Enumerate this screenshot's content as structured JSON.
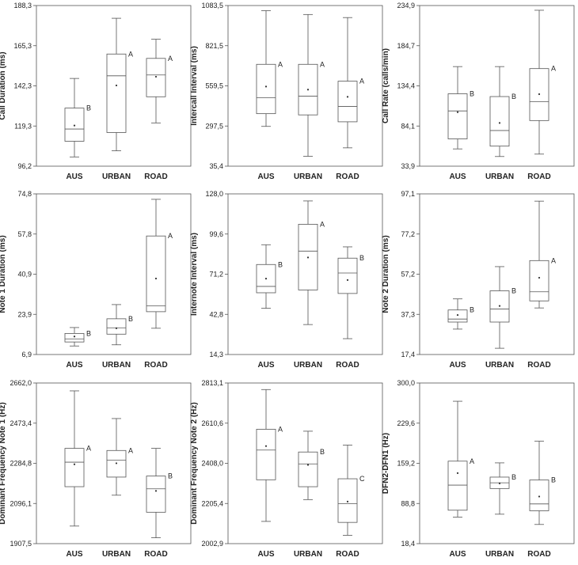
{
  "chart_data": [
    {
      "type": "boxplot",
      "ylabel": "Call Duration (ms)",
      "ylim": [
        96.2,
        188.3
      ],
      "yticks": [
        "96,2",
        "119,3",
        "142,3",
        "165,3",
        "188,3"
      ],
      "categories": [
        "AUS",
        "URBAN",
        "ROAD"
      ],
      "boxes": [
        {
          "min": 101.5,
          "q1": 110.5,
          "median": 117.5,
          "q3": 129.5,
          "max": 146.5,
          "mean": 119.5,
          "letter": "B"
        },
        {
          "min": 105.0,
          "q1": 115.5,
          "median": 148.0,
          "q3": 160.5,
          "max": 181.0,
          "mean": 142.5,
          "letter": "A"
        },
        {
          "min": 121.0,
          "q1": 136.0,
          "median": 148.5,
          "q3": 158.0,
          "max": 169.0,
          "mean": 147.5,
          "letter": "A"
        }
      ]
    },
    {
      "type": "boxplot",
      "ylabel": "Intercall Interval (ms)",
      "ylim": [
        35.4,
        1083.5
      ],
      "yticks": [
        "35,4",
        "297,5",
        "559,5",
        "821,5",
        "1083,5"
      ],
      "categories": [
        "AUS",
        "URBAN",
        "ROAD"
      ],
      "boxes": [
        {
          "min": 295,
          "q1": 378,
          "median": 482,
          "q3": 700,
          "max": 1050,
          "mean": 555,
          "letter": "A"
        },
        {
          "min": 100,
          "q1": 370,
          "median": 492,
          "q3": 700,
          "max": 1025,
          "mean": 535,
          "letter": "A"
        },
        {
          "min": 155,
          "q1": 325,
          "median": 425,
          "q3": 590,
          "max": 1005,
          "mean": 488,
          "letter": "A"
        }
      ]
    },
    {
      "type": "boxplot",
      "ylabel": "Call Rate (calls/min)",
      "ylim": [
        33.9,
        234.9
      ],
      "yticks": [
        "33,9",
        "84,1",
        "134,4",
        "184,7",
        "234,9"
      ],
      "categories": [
        "AUS",
        "URBAN",
        "ROAD"
      ],
      "boxes": [
        {
          "min": 55.5,
          "q1": 68.0,
          "median": 103.0,
          "q3": 124.5,
          "max": 158.5,
          "mean": 101.5,
          "letter": "B"
        },
        {
          "min": 46.0,
          "q1": 59.0,
          "median": 78.5,
          "q3": 121.0,
          "max": 158.5,
          "mean": 88.0,
          "letter": "B"
        },
        {
          "min": 49.0,
          "q1": 91.0,
          "median": 114.5,
          "q3": 156.0,
          "max": 229.0,
          "mean": 124.0,
          "letter": "A"
        }
      ]
    },
    {
      "type": "boxplot",
      "ylabel": "Note 1 Duration (ms)",
      "ylim": [
        6.9,
        74.8
      ],
      "yticks": [
        "6,9",
        "23,9",
        "40,9",
        "57,8",
        "74,8"
      ],
      "categories": [
        "AUS",
        "URBAN",
        "ROAD"
      ],
      "boxes": [
        {
          "min": 10.5,
          "q1": 12.2,
          "median": 13.5,
          "q3": 15.8,
          "max": 18.3,
          "mean": 14.5,
          "letter": "B"
        },
        {
          "min": 11.0,
          "q1": 15.5,
          "median": 18.2,
          "q3": 22.0,
          "max": 28.0,
          "mean": 18.0,
          "letter": "B"
        },
        {
          "min": 18.0,
          "q1": 25.0,
          "median": 27.5,
          "q3": 57.0,
          "max": 72.5,
          "mean": 39.0,
          "letter": "A"
        }
      ]
    },
    {
      "type": "boxplot",
      "ylabel": "Internote Interval (ms)",
      "ylim": [
        14.3,
        128.0
      ],
      "yticks": [
        "14,3",
        "42,8",
        "71,2",
        "99,6",
        "128,0"
      ],
      "categories": [
        "AUS",
        "URBAN",
        "ROAD"
      ],
      "boxes": [
        {
          "min": 47.0,
          "q1": 58.0,
          "median": 62.5,
          "q3": 78.0,
          "max": 92.0,
          "mean": 68.0,
          "letter": "B"
        },
        {
          "min": 35.5,
          "q1": 60.0,
          "median": 87.5,
          "q3": 106.5,
          "max": 123.0,
          "mean": 83.0,
          "letter": "A"
        },
        {
          "min": 25.5,
          "q1": 57.5,
          "median": 72.0,
          "q3": 82.5,
          "max": 90.5,
          "mean": 67.0,
          "letter": "B"
        }
      ]
    },
    {
      "type": "boxplot",
      "ylabel": "Note 2 Duration (ms)",
      "ylim": [
        17.4,
        97.1
      ],
      "yticks": [
        "17,4",
        "37,3",
        "57,2",
        "77,2",
        "97,1"
      ],
      "categories": [
        "AUS",
        "URBAN",
        "ROAD"
      ],
      "boxes": [
        {
          "min": 30.0,
          "q1": 33.5,
          "median": 35.0,
          "q3": 39.5,
          "max": 45.0,
          "mean": 37.0,
          "letter": "B"
        },
        {
          "min": 20.5,
          "q1": 33.5,
          "median": 40.0,
          "q3": 49.0,
          "max": 61.0,
          "mean": 41.5,
          "letter": "B"
        },
        {
          "min": 40.5,
          "q1": 44.0,
          "median": 48.5,
          "q3": 64.0,
          "max": 93.5,
          "mean": 55.5,
          "letter": "A"
        }
      ]
    },
    {
      "type": "boxplot",
      "ylabel": "Dominant Frequency Note 1 (Hz)",
      "ylim": [
        1907.5,
        2662.0
      ],
      "yticks": [
        "1907,5",
        "2096,1",
        "2284,8",
        "2473,4",
        "2662,0"
      ],
      "categories": [
        "AUS",
        "URBAN",
        "ROAD"
      ],
      "boxes": [
        {
          "min": 1990,
          "q1": 2175,
          "median": 2290,
          "q3": 2355,
          "max": 2625,
          "mean": 2280,
          "letter": "A"
        },
        {
          "min": 2135,
          "q1": 2220,
          "median": 2300,
          "q3": 2345,
          "max": 2495,
          "mean": 2285,
          "letter": "A"
        },
        {
          "min": 1935,
          "q1": 2055,
          "median": 2165,
          "q3": 2225,
          "max": 2355,
          "mean": 2155,
          "letter": "B"
        }
      ]
    },
    {
      "type": "boxplot",
      "ylabel": "Dominant Frequency Note 2 (Hz)",
      "ylim": [
        2002.9,
        2813.1
      ],
      "yticks": [
        "2002,9",
        "2205,4",
        "2408,0",
        "2610,6",
        "2813,1"
      ],
      "categories": [
        "AUS",
        "URBAN",
        "ROAD"
      ],
      "boxes": [
        {
          "min": 2115,
          "q1": 2325,
          "median": 2475,
          "q3": 2580,
          "max": 2780,
          "mean": 2495,
          "letter": "A"
        },
        {
          "min": 2225,
          "q1": 2290,
          "median": 2405,
          "q3": 2465,
          "max": 2570,
          "mean": 2400,
          "letter": "B"
        },
        {
          "min": 2045,
          "q1": 2110,
          "median": 2205,
          "q3": 2330,
          "max": 2500,
          "mean": 2215,
          "letter": "C"
        }
      ]
    },
    {
      "type": "boxplot",
      "ylabel": "DFN2-DFN1 (Hz)",
      "ylim": [
        18.4,
        300.0
      ],
      "yticks": [
        "18,4",
        "88,8",
        "159,2",
        "229,6",
        "300,0"
      ],
      "categories": [
        "AUS",
        "URBAN",
        "ROAD"
      ],
      "boxes": [
        {
          "min": 65,
          "q1": 77,
          "median": 121,
          "q3": 163,
          "max": 268,
          "mean": 142,
          "letter": "A"
        },
        {
          "min": 70,
          "q1": 115,
          "median": 125,
          "q3": 135,
          "max": 160,
          "mean": 124,
          "letter": "B"
        },
        {
          "min": 52,
          "q1": 76,
          "median": 88,
          "q3": 130,
          "max": 198,
          "mean": 101,
          "letter": "B"
        }
      ]
    }
  ]
}
